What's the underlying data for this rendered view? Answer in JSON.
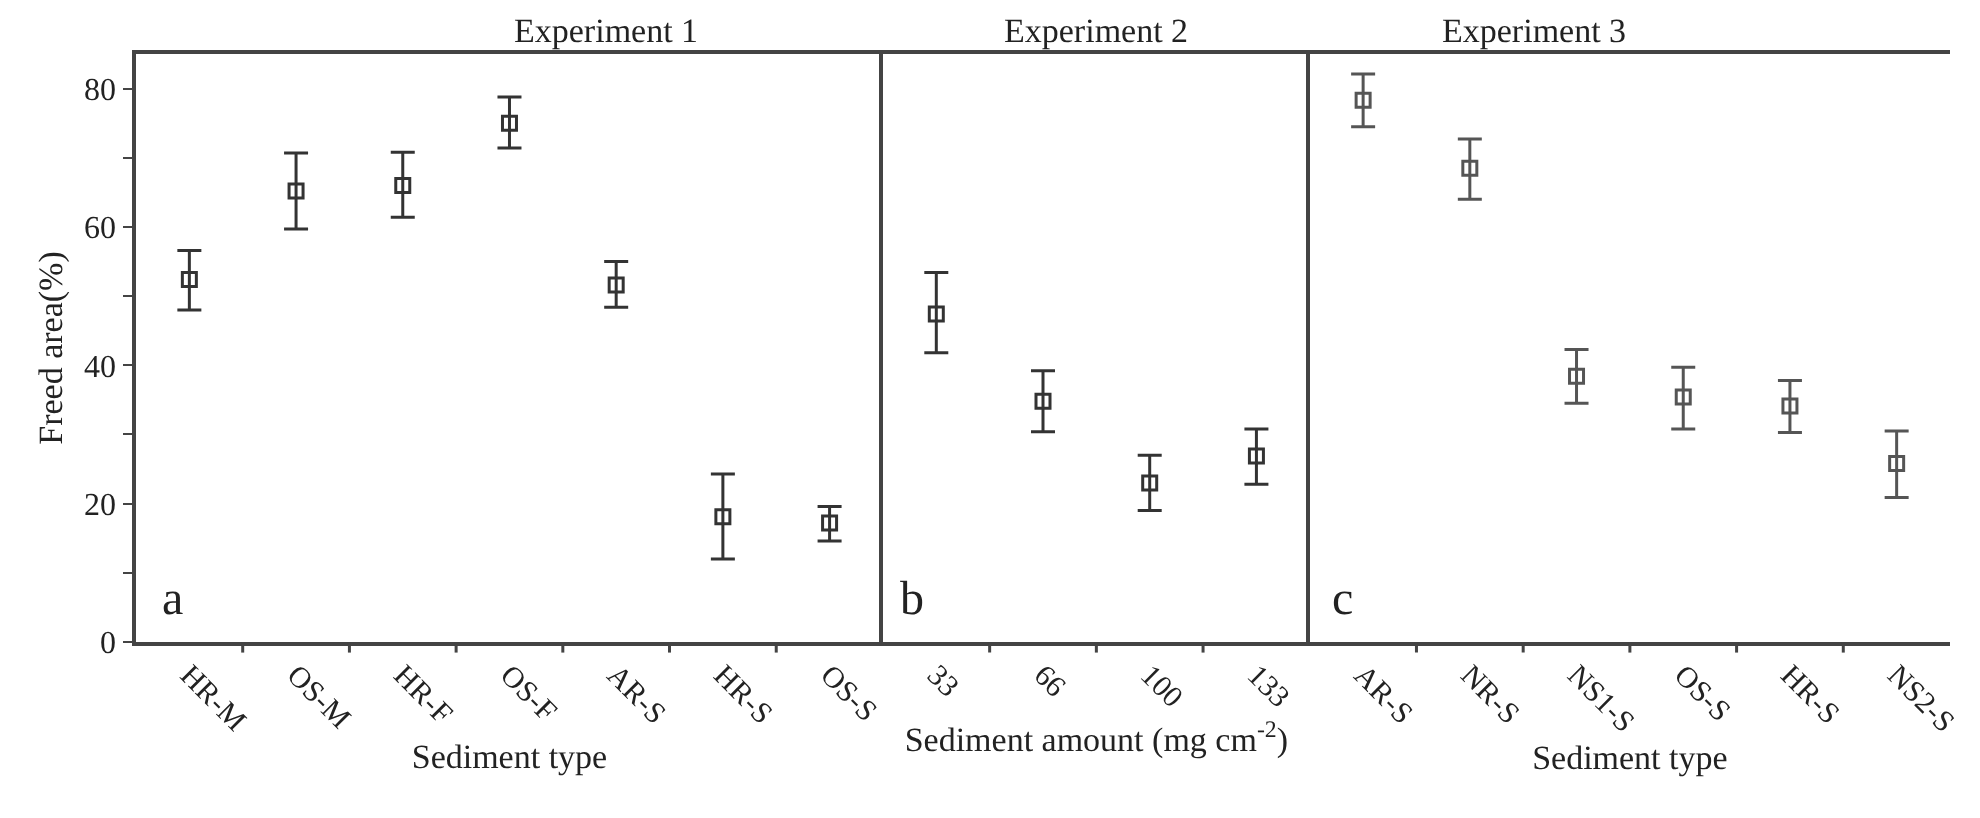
{
  "chart_data": [
    {
      "type": "scatter",
      "title": "Experiment 1",
      "xlabel": "Sediment type",
      "ylabel": "Freed area(%)",
      "categories": [
        "HR-M",
        "OS-M",
        "HR-F",
        "OS-F",
        "AR-S",
        "HR-S",
        "OS-S"
      ],
      "values": [
        52.4,
        65.2,
        66.0,
        75.0,
        51.6,
        18.1,
        17.2
      ],
      "errors": [
        [
          48.0,
          56.6
        ],
        [
          59.7,
          70.7
        ],
        [
          61.4,
          70.8
        ],
        [
          71.4,
          78.8
        ],
        [
          48.4,
          55.0
        ],
        [
          12.0,
          24.3
        ],
        [
          14.6,
          19.6
        ]
      ],
      "color": "#333333",
      "marker": "square",
      "ylim": [
        0,
        85
      ],
      "yticks": [
        0,
        {
          "value": 10,
          "label": null
        },
        20,
        {
          "value": 30,
          "label": null
        },
        40,
        {
          "value": 50,
          "label": null
        },
        60,
        {
          "value": 70,
          "label": null
        },
        80
      ],
      "annotations": [
        "a"
      ]
    },
    {
      "type": "scatter",
      "title": "Experiment 2",
      "xlabel": "Sediment amount (mg cm$^{-2}$)",
      "categories": [
        "33",
        "66",
        "100",
        "133"
      ],
      "values": [
        47.4,
        34.8,
        23.0,
        26.9
      ],
      "errors": [
        [
          41.8,
          53.4
        ],
        [
          30.4,
          39.2
        ],
        [
          19.0,
          27.0
        ],
        [
          22.8,
          30.8
        ]
      ],
      "color": "#333333",
      "marker": "square",
      "ylim": [
        0,
        85
      ],
      "annotations": [
        "b"
      ],
      "tick_labels": "x"
    },
    {
      "type": "scatter",
      "title": "Experiment 3",
      "xlabel": "Sediment type",
      "categories": [
        "AR-S",
        "NR-S",
        "NS1-S",
        "OS-S",
        "HR-S",
        "NS2-S"
      ],
      "values": [
        78.3,
        68.5,
        38.4,
        35.4,
        34.1,
        25.8
      ],
      "errors": [
        [
          74.5,
          82.1
        ],
        [
          64.0,
          72.7
        ],
        [
          34.5,
          42.3
        ],
        [
          30.8,
          39.7
        ],
        [
          30.3,
          37.8
        ],
        [
          20.9,
          30.5
        ]
      ],
      "color": "#555555",
      "marker": "square",
      "ylim": [
        0,
        85
      ],
      "annotations": [
        "c"
      ],
      "tick_labels": "x"
    }
  ]
}
